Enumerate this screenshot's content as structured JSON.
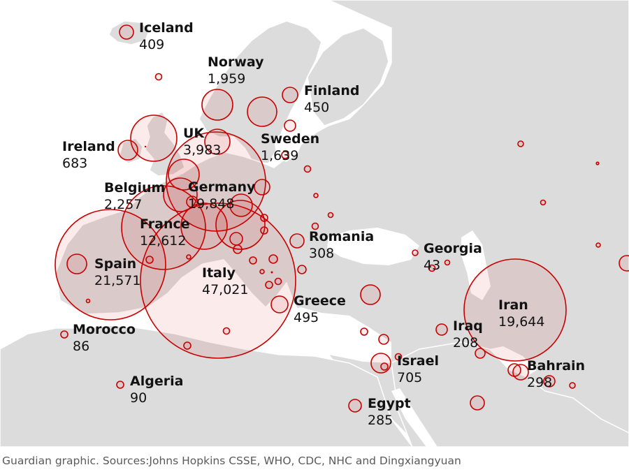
{
  "source": "Guardian graphic. Sources:Johns Hopkins CSSE, WHO, CDC, NHC and Dingxiangyuan",
  "colors": {
    "sea": "#ffffff",
    "land": "#dcdcdc",
    "land_dark": "#cfcfcf",
    "border": "#ffffff",
    "bubble": "#c70000"
  },
  "labels": [
    {
      "key": "iceland",
      "name": "Iceland",
      "value": "409"
    },
    {
      "key": "norway",
      "name": "Norway",
      "value": "1,959"
    },
    {
      "key": "finland",
      "name": "Finland",
      "value": "450"
    },
    {
      "key": "uk",
      "name": "UK",
      "value": "3,983"
    },
    {
      "key": "sweden",
      "name": "Sweden",
      "value": "1,639"
    },
    {
      "key": "ireland",
      "name": "Ireland",
      "value": "683"
    },
    {
      "key": "belgium",
      "name": "Belgium",
      "value": "2,257"
    },
    {
      "key": "germany",
      "name": "Germany",
      "value": "19,848"
    },
    {
      "key": "france",
      "name": "France",
      "value": "12,612"
    },
    {
      "key": "romania",
      "name": "Romania",
      "value": "308"
    },
    {
      "key": "spain",
      "name": "Spain",
      "value": "21,571"
    },
    {
      "key": "italy",
      "name": "Italy",
      "value": "47,021"
    },
    {
      "key": "georgia",
      "name": "Georgia",
      "value": "43"
    },
    {
      "key": "iran",
      "name": "Iran",
      "value": "19,644"
    },
    {
      "key": "greece",
      "name": "Greece",
      "value": "495"
    },
    {
      "key": "iraq",
      "name": "Iraq",
      "value": "208"
    },
    {
      "key": "morocco",
      "name": "Morocco",
      "value": "86"
    },
    {
      "key": "israel",
      "name": "Israel",
      "value": "705"
    },
    {
      "key": "bahrain",
      "name": "Bahrain",
      "value": "298"
    },
    {
      "key": "algeria",
      "name": "Algeria",
      "value": "90"
    },
    {
      "key": "egypt",
      "name": "Egypt",
      "value": "285"
    }
  ]
}
